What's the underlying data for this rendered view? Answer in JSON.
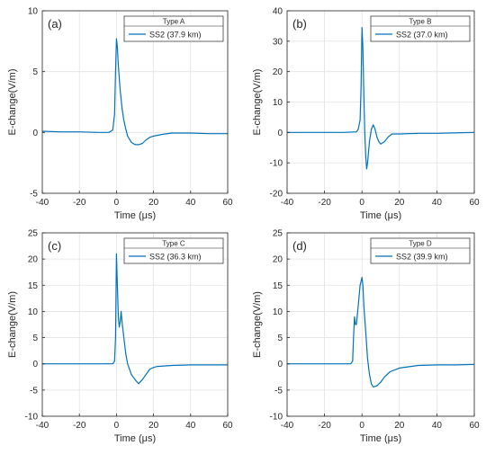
{
  "chart_data": [
    {
      "type": "line",
      "panel_label": "(a)",
      "legend_title": "Type A",
      "xlabel": "Time (μs)",
      "ylabel": "E-change(V/m)",
      "xlim": [
        -40,
        60
      ],
      "ylim": [
        -5,
        10
      ],
      "xticks": [
        -40,
        -20,
        0,
        20,
        40,
        60
      ],
      "yticks": [
        -5,
        0,
        5,
        10
      ],
      "grid": true,
      "legend_position": "top-right",
      "color": "#0072BD",
      "series": [
        {
          "name": "SS2 (37.9 km)",
          "x": [
            -40,
            -30,
            -20,
            -10,
            -4,
            -2,
            -1,
            -0.5,
            0,
            0.5,
            1,
            2,
            3,
            4,
            5,
            6,
            8,
            10,
            12,
            14,
            16,
            18,
            20,
            25,
            30,
            40,
            50,
            60
          ],
          "y": [
            0.1,
            0.05,
            0.05,
            0.0,
            0.0,
            0.2,
            1.5,
            5.0,
            7.7,
            7.0,
            5.5,
            3.5,
            2.0,
            1.0,
            0.3,
            -0.3,
            -0.8,
            -1.0,
            -1.0,
            -0.9,
            -0.6,
            -0.4,
            -0.3,
            -0.15,
            -0.05,
            -0.05,
            -0.1,
            -0.1
          ]
        }
      ]
    },
    {
      "type": "line",
      "panel_label": "(b)",
      "legend_title": "Type B",
      "xlabel": "Time (μs)",
      "ylabel": "E-change(V/m)",
      "xlim": [
        -40,
        60
      ],
      "ylim": [
        -20,
        40
      ],
      "xticks": [
        -40,
        -20,
        0,
        20,
        40,
        60
      ],
      "yticks": [
        -20,
        -10,
        0,
        10,
        20,
        30,
        40
      ],
      "grid": true,
      "legend_position": "top-right",
      "color": "#0072BD",
      "series": [
        {
          "name": "SS2 (37.0 km)",
          "x": [
            -40,
            -20,
            -10,
            -3,
            -2,
            -1,
            -0.5,
            0,
            0.5,
            1,
            1.5,
            2,
            2.5,
            3,
            4,
            5,
            6,
            7,
            8,
            9,
            10,
            12,
            14,
            16,
            20,
            30,
            40,
            60
          ],
          "y": [
            0,
            0,
            0,
            0.2,
            1.0,
            4.0,
            15.0,
            34.5,
            28.0,
            12.0,
            0.0,
            -8.0,
            -12.0,
            -10.0,
            -3.0,
            1.0,
            2.5,
            1.0,
            -1.5,
            -3.0,
            -3.8,
            -3.0,
            -1.5,
            -0.5,
            -0.5,
            -0.3,
            -0.3,
            0
          ]
        }
      ]
    },
    {
      "type": "line",
      "panel_label": "(c)",
      "legend_title": "Type C",
      "xlabel": "Time (μs)",
      "ylabel": "E-change(V/m)",
      "xlim": [
        -40,
        60
      ],
      "ylim": [
        -10,
        25
      ],
      "xticks": [
        -40,
        -20,
        0,
        20,
        40,
        60
      ],
      "yticks": [
        -10,
        -5,
        0,
        5,
        10,
        15,
        20,
        25
      ],
      "grid": true,
      "legend_position": "top-right",
      "color": "#0072BD",
      "series": [
        {
          "name": "SS2 (36.3 km)",
          "x": [
            -40,
            -20,
            -5,
            -2,
            -1,
            -0.5,
            0,
            0.5,
            1,
            1.5,
            2,
            2.5,
            3,
            4,
            5,
            6,
            8,
            10,
            12,
            14,
            16,
            18,
            20,
            22,
            30,
            40,
            50,
            60
          ],
          "y": [
            0,
            0,
            0,
            0,
            0.5,
            5.0,
            21.0,
            15.0,
            9.0,
            7.0,
            8.0,
            10.0,
            8.0,
            5.0,
            2.0,
            0.0,
            -2.0,
            -3.0,
            -3.8,
            -3.0,
            -2.0,
            -1.0,
            -0.7,
            -0.5,
            -0.3,
            -0.2,
            -0.2,
            -0.2
          ]
        }
      ]
    },
    {
      "type": "line",
      "panel_label": "(d)",
      "legend_title": "Type D",
      "xlabel": "Time (μs)",
      "ylabel": "E-change(V/m)",
      "xlim": [
        -40,
        60
      ],
      "ylim": [
        -10,
        25
      ],
      "xticks": [
        -40,
        -20,
        0,
        20,
        40,
        60
      ],
      "yticks": [
        -10,
        -5,
        0,
        5,
        10,
        15,
        20,
        25
      ],
      "grid": true,
      "legend_position": "top-right",
      "color": "#0072BD",
      "series": [
        {
          "name": "SS2 (39.9 km)",
          "x": [
            -40,
            -20,
            -10,
            -6,
            -5,
            -4.5,
            -4,
            -3.5,
            -3,
            -2,
            -1,
            0,
            0.5,
            1,
            2,
            3,
            4,
            5,
            6,
            8,
            10,
            12,
            15,
            20,
            30,
            40,
            50,
            60
          ],
          "y": [
            0,
            0,
            0,
            0,
            0.5,
            5.0,
            9.0,
            7.5,
            7.5,
            11.0,
            15.0,
            16.5,
            15.0,
            11.0,
            6.0,
            1.0,
            -2.0,
            -3.8,
            -4.4,
            -4.2,
            -3.5,
            -2.5,
            -1.5,
            -0.8,
            -0.3,
            -0.2,
            -0.2,
            -0.1
          ]
        }
      ]
    }
  ]
}
